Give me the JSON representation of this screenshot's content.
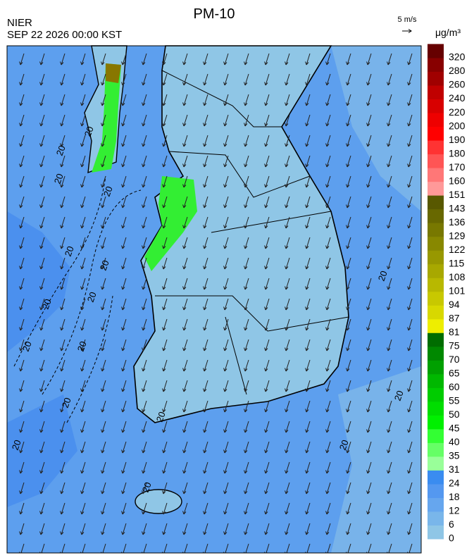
{
  "header": {
    "title": "PM-10",
    "agency": "NIER",
    "timestamp": "SEP 22 2026 00:00 KST"
  },
  "vector_scale": "5 m/s",
  "legend": {
    "unit": "μg/m³",
    "levels": [
      0,
      6,
      12,
      18,
      24,
      31,
      35,
      40,
      45,
      50,
      55,
      60,
      65,
      70,
      75,
      81,
      87,
      94,
      101,
      108,
      115,
      122,
      129,
      136,
      143,
      151,
      160,
      170,
      180,
      190,
      200,
      220,
      240,
      260,
      280,
      320
    ],
    "colors": [
      "#8fc6e6",
      "#79b6ea",
      "#66a6ee",
      "#5498f0",
      "#3a8cf0",
      "#99ff99",
      "#66ff66",
      "#33ff33",
      "#00f000",
      "#00dd00",
      "#00cc00",
      "#00b800",
      "#00a000",
      "#008800",
      "#006d00",
      "#eeee00",
      "#d8d800",
      "#c8c800",
      "#b8b800",
      "#a8a800",
      "#989800",
      "#888800",
      "#787800",
      "#686800",
      "#585800",
      "#ff9999",
      "#ff7777",
      "#ff5555",
      "#ff3333",
      "#ff0000",
      "#ee0000",
      "#d80000",
      "#c00000",
      "#a00000",
      "#880000",
      "#660000"
    ]
  },
  "contour_label": "20"
}
